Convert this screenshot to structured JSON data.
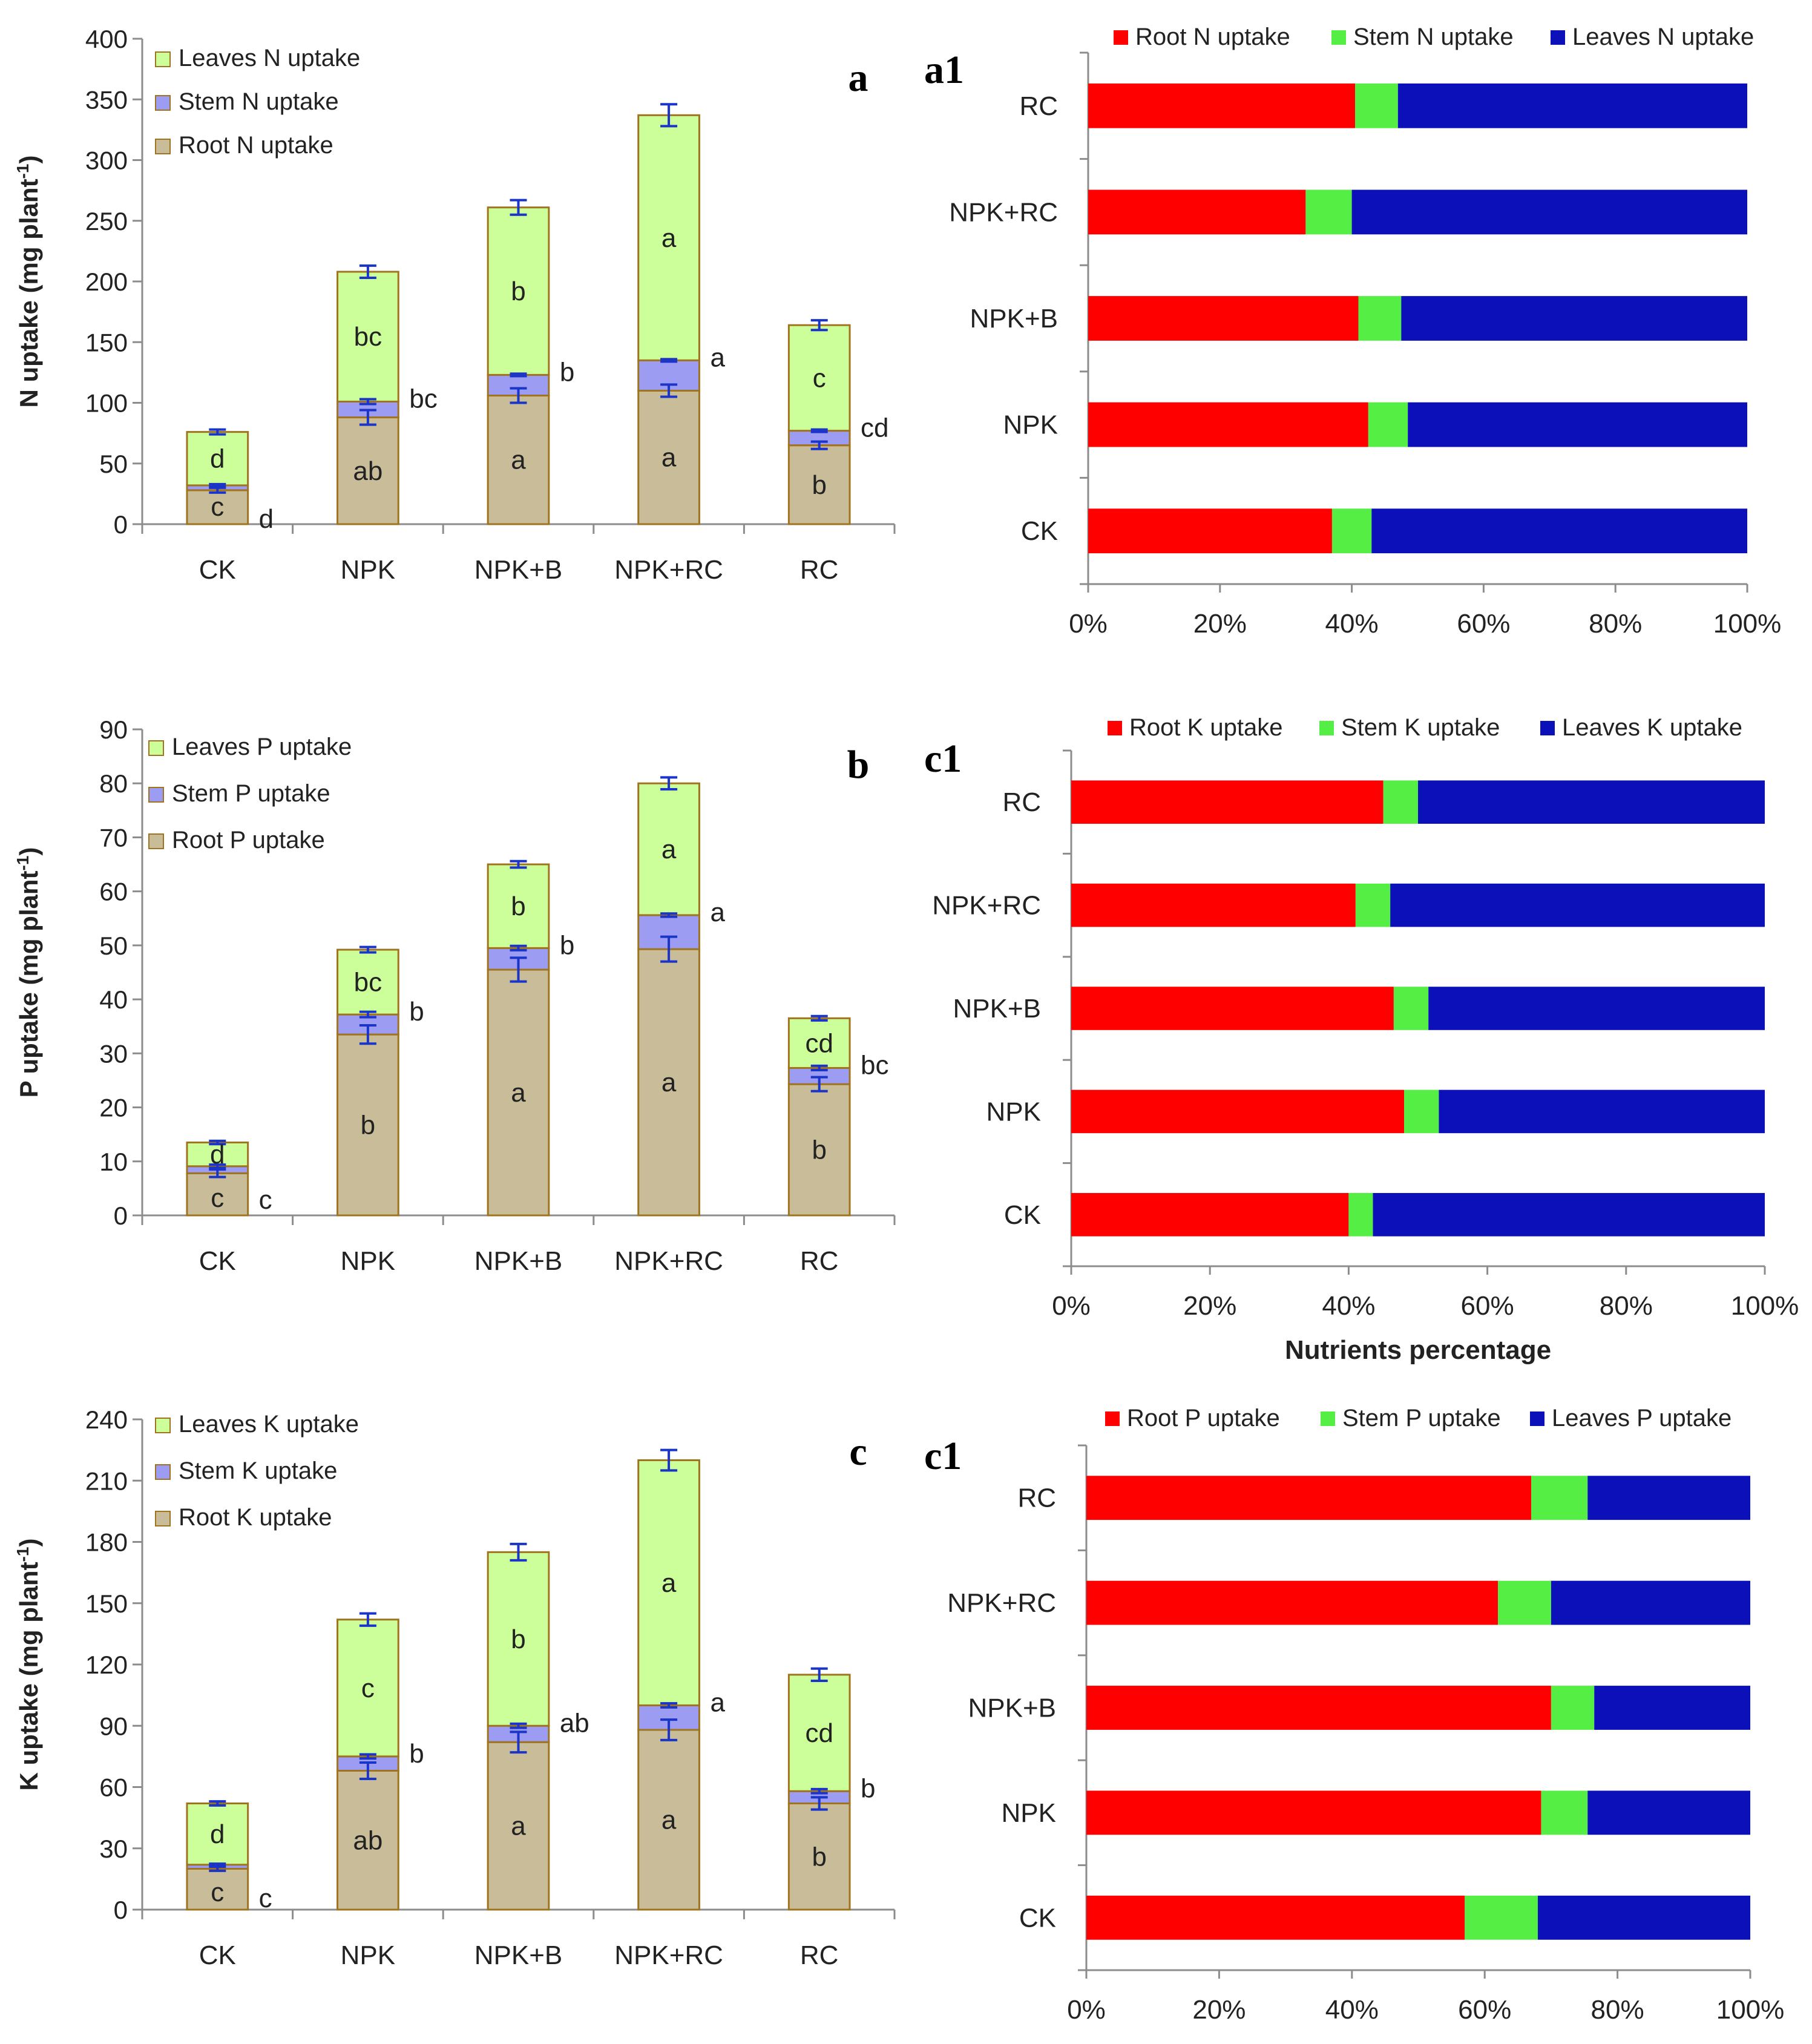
{
  "colors": {
    "root_stack": "#C9BC98",
    "stem_stack": "#9C9CF2",
    "leaves_stack": "#CCFF99",
    "bar_edge": "#A0741F",
    "error_bar": "#1A35C8",
    "sig_red": "#FF1A1A",
    "pct_root": "#FF0000",
    "pct_stem": "#55EE44",
    "pct_leaves": "#0B10B8",
    "axis": "#8C8C8C"
  },
  "chart_data": [
    {
      "id": "a",
      "type": "bar",
      "stacked": true,
      "panel_letter": "a",
      "ylabel_main": "N uptake (mg plant",
      "ylabel_sup": "-1",
      "ylabel_end": ")",
      "ylim": [
        0,
        400
      ],
      "yticks": [
        0,
        50,
        100,
        150,
        200,
        250,
        300,
        350,
        400
      ],
      "categories": [
        "CK",
        "NPK",
        "NPK+B",
        "NPK+RC",
        "RC"
      ],
      "legend": [
        "Leaves N uptake",
        "Stem N uptake",
        "Root N uptake"
      ],
      "series": [
        {
          "name": "Root N uptake",
          "values": [
            28,
            88,
            106,
            110,
            65
          ],
          "errors": [
            2,
            6,
            6,
            5,
            3
          ],
          "letters": [
            "c",
            "ab",
            "a",
            "a",
            "b"
          ]
        },
        {
          "name": "Stem N uptake",
          "values": [
            4,
            13,
            17,
            25,
            12
          ],
          "errors": [
            1,
            2,
            1,
            1,
            1
          ],
          "letters": [
            "",
            "",
            "",
            "",
            ""
          ]
        },
        {
          "name": "Leaves N uptake",
          "values": [
            44,
            107,
            138,
            202,
            87
          ],
          "errors": [
            2,
            5,
            6,
            9,
            4
          ],
          "letters": [
            "d",
            "bc",
            "b",
            "a",
            "c"
          ]
        }
      ],
      "side_letters": [
        "d",
        "bc",
        "b",
        "a",
        "cd"
      ]
    },
    {
      "id": "a1",
      "type": "bar",
      "orientation": "horizontal",
      "stacked_percent": true,
      "panel_letter": "a1",
      "categories": [
        "CK",
        "NPK",
        "NPK+B",
        "NPK+RC",
        "RC"
      ],
      "xticks": [
        "0%",
        "20%",
        "40%",
        "60%",
        "80%",
        "100%"
      ],
      "legend": [
        "Root N uptake",
        "Stem N uptake",
        "Leaves N uptake"
      ],
      "series": [
        {
          "name": "Root N uptake",
          "values": [
            37,
            42.5,
            41,
            33,
            40.5
          ]
        },
        {
          "name": "Stem N uptake",
          "values": [
            6,
            6,
            6.5,
            7,
            6.5
          ]
        },
        {
          "name": "Leaves N uptake",
          "values": [
            57,
            51.5,
            52.5,
            60,
            53
          ]
        }
      ]
    },
    {
      "id": "b",
      "type": "bar",
      "stacked": true,
      "panel_letter": "b",
      "ylabel_main": "P uptake (mg plant",
      "ylabel_sup": "-1",
      "ylabel_end": ")",
      "ylim": [
        0,
        90
      ],
      "yticks": [
        0,
        10,
        20,
        30,
        40,
        50,
        60,
        70,
        80,
        90
      ],
      "categories": [
        "CK",
        "NPK",
        "NPK+B",
        "NPK+RC",
        "RC"
      ],
      "legend": [
        "Leaves P uptake",
        "Stem P uptake",
        "Root P uptake"
      ],
      "series": [
        {
          "name": "Root P uptake",
          "values": [
            7.8,
            33.5,
            45.5,
            49.3,
            24.3
          ],
          "errors": [
            0.7,
            1.7,
            2.2,
            2.3,
            1.3
          ],
          "letters": [
            "c",
            "b",
            "a",
            "a",
            "b"
          ]
        },
        {
          "name": "Stem P uptake",
          "values": [
            1.3,
            3.7,
            4.0,
            6.3,
            3.0
          ],
          "errors": [
            0.3,
            0.5,
            0.4,
            0.3,
            0.4
          ],
          "letters": [
            "",
            "",
            "",
            "",
            ""
          ]
        },
        {
          "name": "Leaves P uptake",
          "values": [
            4.4,
            12.0,
            15.5,
            24.4,
            9.2
          ],
          "errors": [
            0.3,
            0.5,
            0.6,
            1.1,
            0.4
          ],
          "letters": [
            "d",
            "bc",
            "b",
            "a",
            "cd"
          ]
        }
      ],
      "side_letters": [
        "c",
        "b",
        "b",
        "a",
        "bc"
      ]
    },
    {
      "id": "c1_top",
      "type": "bar",
      "orientation": "horizontal",
      "stacked_percent": true,
      "panel_letter": "c1",
      "xlabel": "Nutrients  percentage",
      "categories": [
        "CK",
        "NPK",
        "NPK+B",
        "NPK+RC",
        "RC"
      ],
      "xticks": [
        "0%",
        "20%",
        "40%",
        "60%",
        "80%",
        "100%"
      ],
      "legend": [
        "Root K uptake",
        "Stem K uptake",
        "Leaves K uptake"
      ],
      "series": [
        {
          "name": "Root K uptake",
          "values": [
            40,
            48,
            46.5,
            41,
            45
          ]
        },
        {
          "name": "Stem K uptake",
          "values": [
            3.5,
            5,
            5,
            5,
            5
          ]
        },
        {
          "name": "Leaves K uptake",
          "values": [
            56.5,
            47,
            48.5,
            54,
            50
          ]
        }
      ]
    },
    {
      "id": "c",
      "type": "bar",
      "stacked": true,
      "panel_letter": "c",
      "ylabel_main": "K uptake (mg plant",
      "ylabel_sup": "-1",
      "ylabel_end": ")",
      "ylim": [
        0,
        240
      ],
      "yticks": [
        0,
        30,
        60,
        90,
        120,
        150,
        180,
        210,
        240
      ],
      "categories": [
        "CK",
        "NPK",
        "NPK+B",
        "NPK+RC",
        "RC"
      ],
      "legend": [
        "Leaves K uptake",
        "Stem K uptake",
        "Root K uptake"
      ],
      "series": [
        {
          "name": "Root K uptake",
          "values": [
            20,
            68,
            82,
            88,
            52
          ],
          "errors": [
            1,
            4,
            5,
            5,
            3
          ],
          "letters": [
            "c",
            "ab",
            "a",
            "a",
            "b"
          ]
        },
        {
          "name": "Stem K uptake",
          "values": [
            2,
            7,
            8,
            12,
            6
          ],
          "errors": [
            0.5,
            1,
            1,
            1,
            1
          ],
          "letters": [
            "",
            "",
            "",
            "",
            ""
          ]
        },
        {
          "name": "Leaves K uptake",
          "values": [
            30,
            67,
            85,
            120,
            57
          ],
          "errors": [
            1,
            3,
            4,
            5,
            3
          ],
          "letters": [
            "d",
            "c",
            "b",
            "a",
            "cd"
          ]
        }
      ],
      "side_letters": [
        "c",
        "b",
        "ab",
        "a",
        "b"
      ]
    },
    {
      "id": "c1_bottom",
      "type": "bar",
      "orientation": "horizontal",
      "stacked_percent": true,
      "panel_letter": "c1",
      "categories": [
        "CK",
        "NPK",
        "NPK+B",
        "NPK+RC",
        "RC"
      ],
      "xticks": [
        "0%",
        "20%",
        "40%",
        "60%",
        "80%",
        "100%"
      ],
      "legend": [
        "Root P uptake",
        "Stem P uptake",
        "Leaves P uptake"
      ],
      "series": [
        {
          "name": "Root P uptake",
          "values": [
            57,
            68.5,
            70,
            62,
            67
          ]
        },
        {
          "name": "Stem P uptake",
          "values": [
            11,
            7,
            6.5,
            8,
            8.5
          ]
        },
        {
          "name": "Leaves P uptake",
          "values": [
            32,
            24.5,
            23.5,
            30,
            24.5
          ]
        }
      ]
    }
  ]
}
